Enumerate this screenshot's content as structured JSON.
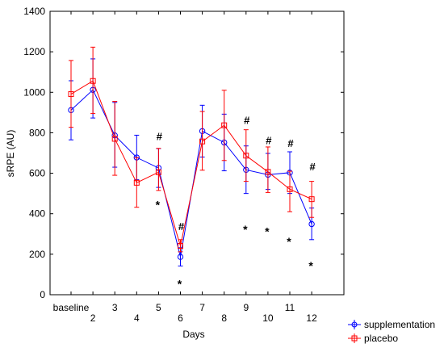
{
  "chart_data": {
    "type": "line",
    "xlabel": "Days",
    "ylabel": "sRPE (AU)",
    "ylim": [
      0,
      1400
    ],
    "yticks": [
      0,
      200,
      400,
      600,
      800,
      1000,
      1200,
      1400
    ],
    "categories": [
      "baseline",
      "2",
      "3",
      "4",
      "5",
      "6",
      "7",
      "8",
      "9",
      "10",
      "11",
      "12"
    ],
    "grid": false,
    "legend_position": "bottom-right",
    "series": [
      {
        "name": "supplementation",
        "color": "#0000ff",
        "marker": "circle",
        "values": [
          912,
          1012,
          787,
          678,
          626,
          187,
          808,
          752,
          617,
          593,
          603,
          349
        ],
        "error_low": [
          765,
          873,
          630,
          568,
          530,
          142,
          680,
          612,
          500,
          520,
          500,
          272
        ],
        "error_high": [
          1057,
          1165,
          950,
          788,
          722,
          232,
          936,
          892,
          735,
          698,
          706,
          428
        ]
      },
      {
        "name": "placebo",
        "color": "#ff0000",
        "marker": "square",
        "values": [
          991,
          1056,
          770,
          553,
          605,
          241,
          757,
          837,
          687,
          607,
          521,
          472
        ],
        "error_low": [
          827,
          895,
          590,
          432,
          515,
          212,
          615,
          663,
          560,
          505,
          410,
          382
        ],
        "error_high": [
          1157,
          1223,
          955,
          677,
          723,
          272,
          905,
          1010,
          815,
          730,
          610,
          560
        ]
      }
    ],
    "annotations": [
      {
        "text": "#",
        "x": "5",
        "y": 780
      },
      {
        "text": "#",
        "x": "6",
        "y": 335
      },
      {
        "text": "#",
        "x": "9",
        "y": 860
      },
      {
        "text": "#",
        "x": "10",
        "y": 760
      },
      {
        "text": "#",
        "x": "11",
        "y": 745
      },
      {
        "text": "#",
        "x": "12",
        "y": 630
      },
      {
        "text": "*",
        "x": "5",
        "y": 440
      },
      {
        "text": "*",
        "x": "6",
        "y": 50
      },
      {
        "text": "*",
        "x": "9",
        "y": 320
      },
      {
        "text": "*",
        "x": "10",
        "y": 310
      },
      {
        "text": "*",
        "x": "11",
        "y": 260
      },
      {
        "text": "*",
        "x": "12",
        "y": 140
      }
    ]
  }
}
